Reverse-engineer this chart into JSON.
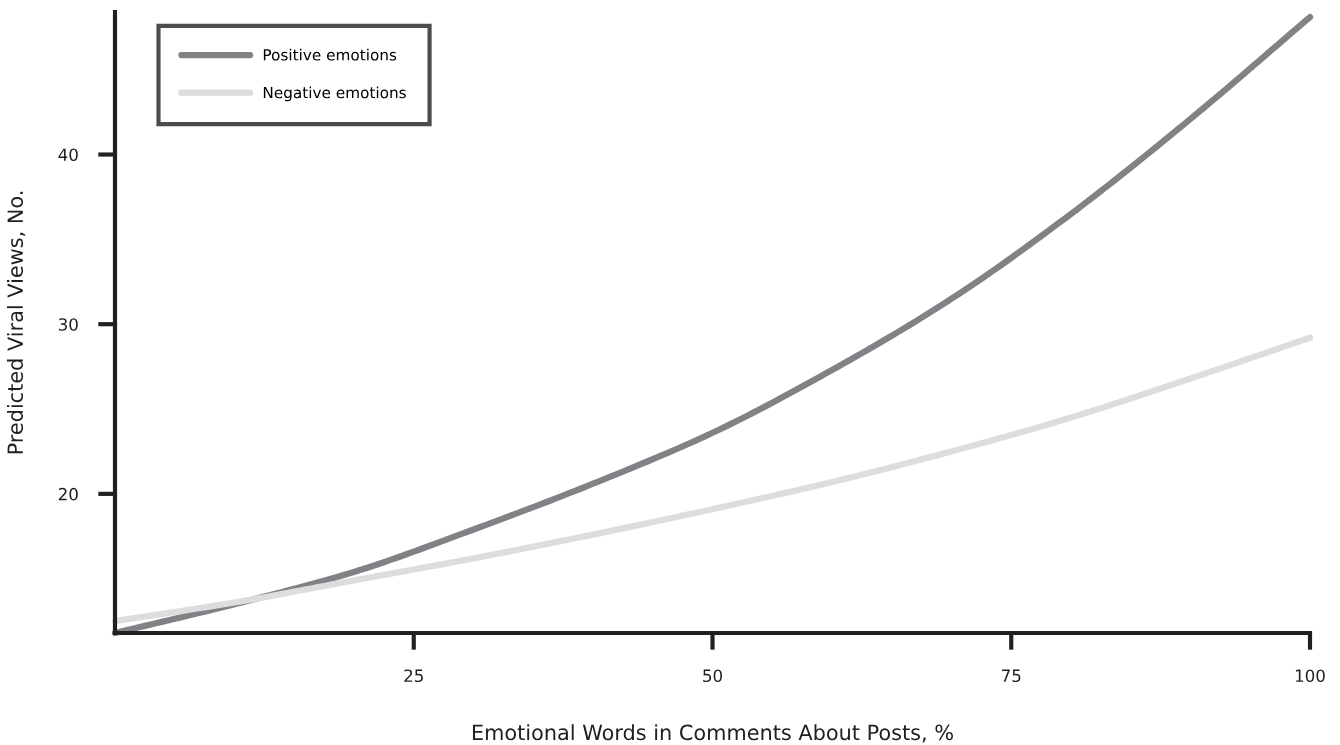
{
  "chart_data": {
    "type": "line",
    "xlabel": "Emotional Words in Comments About Posts, %",
    "ylabel": "Predicted Viral Views, No.",
    "xlim": [
      0,
      100
    ],
    "ylim": [
      11.8,
      48.4
    ],
    "xticks": [
      25,
      50,
      75,
      100
    ],
    "yticks": [
      20,
      30,
      40
    ],
    "grid": false,
    "legend": "top left",
    "marker": "none",
    "line_style": "solid",
    "series": [
      {
        "name": "Positive emotions",
        "color": "#818285",
        "x": [
          0,
          10,
          20,
          30,
          40,
          50,
          60,
          70,
          80,
          90,
          100
        ],
        "values": [
          11.8,
          13.5,
          15.4,
          17.9,
          20.6,
          23.6,
          27.3,
          31.5,
          36.5,
          42.1,
          48.1
        ]
      },
      {
        "name": "Negative emotions",
        "color": "#dcddde",
        "x": [
          0,
          10,
          20,
          30,
          40,
          50,
          60,
          70,
          80,
          90,
          100
        ],
        "values": [
          12.5,
          13.6,
          14.9,
          16.2,
          17.6,
          19.1,
          20.7,
          22.5,
          24.5,
          26.8,
          29.2
        ]
      }
    ]
  }
}
